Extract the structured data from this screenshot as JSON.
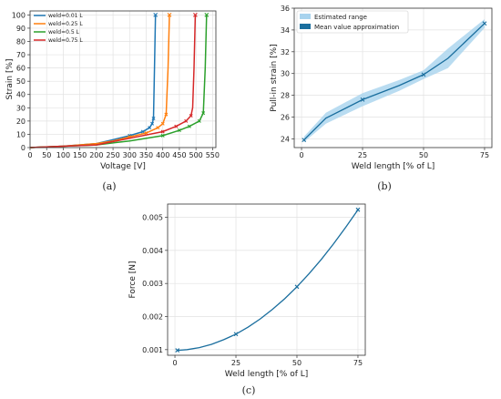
{
  "panels": {
    "a": "(a)",
    "b": "(b)",
    "c": "(c)"
  },
  "colors": {
    "weld_0_01": "#1f77b4",
    "weld_0_25": "#ff7f0e",
    "weld_0_5": "#2ca02c",
    "weld_0_75": "#d62728",
    "teal": "#1a6e9e",
    "band": "#a8d3ee"
  },
  "chart_data": [
    {
      "id": "a",
      "type": "line",
      "title": "",
      "xlabel": "Voltage [V]",
      "ylabel": "Strain [%]",
      "xlim": [
        0,
        560
      ],
      "ylim": [
        0,
        103
      ],
      "xticks": [
        0,
        50,
        100,
        150,
        200,
        250,
        300,
        350,
        400,
        450,
        500,
        550
      ],
      "yticks": [
        0,
        10,
        20,
        30,
        40,
        50,
        60,
        70,
        80,
        90,
        100
      ],
      "grid": true,
      "legend": "top-left",
      "series": [
        {
          "name": "weld=0.01 L",
          "color": "#1f77b4",
          "x": [
            0,
            100,
            200,
            250,
            300,
            340,
            360,
            368,
            372,
            375,
            378
          ],
          "y": [
            0,
            1,
            3,
            6,
            9,
            12,
            15,
            18,
            22,
            60,
            100
          ]
        },
        {
          "name": "weld=0.25 L",
          "color": "#ff7f0e",
          "x": [
            0,
            100,
            200,
            250,
            300,
            350,
            385,
            400,
            410,
            416,
            420
          ],
          "y": [
            0,
            1,
            3,
            5,
            8,
            11,
            15,
            18,
            25,
            60,
            100
          ]
        },
        {
          "name": "weld=0.5 L",
          "color": "#2ca02c",
          "x": [
            0,
            100,
            200,
            300,
            400,
            450,
            480,
            510,
            522,
            528,
            532
          ],
          "y": [
            0,
            1,
            2,
            5,
            9,
            13,
            16,
            20,
            26,
            60,
            100
          ]
        },
        {
          "name": "weld=0.75 L",
          "color": "#d62728",
          "x": [
            0,
            100,
            200,
            300,
            400,
            440,
            470,
            485,
            490,
            494,
            498
          ],
          "y": [
            0,
            1,
            2,
            7,
            12,
            16,
            20,
            24,
            30,
            60,
            100
          ]
        }
      ]
    },
    {
      "id": "b",
      "type": "line",
      "title": "",
      "xlabel": "Weld length [% of L]",
      "ylabel": "Pull-in strain [%]",
      "xlim": [
        -3,
        78
      ],
      "ylim": [
        23.2,
        36
      ],
      "xticks": [
        0,
        25,
        50,
        75
      ],
      "yticks": [
        24,
        26,
        28,
        30,
        32,
        34,
        36
      ],
      "grid": true,
      "legend": "top-left",
      "legend_entries": [
        "Estimated range",
        "Mean value approximation"
      ],
      "points": {
        "x": [
          1,
          25,
          50,
          75
        ],
        "y": [
          23.9,
          27.6,
          29.9,
          34.6
        ]
      },
      "mean_curve": {
        "x": [
          1,
          10,
          25,
          40,
          50,
          60,
          75
        ],
        "y": [
          23.9,
          25.9,
          27.6,
          28.9,
          29.9,
          31.4,
          34.6
        ]
      },
      "band_upper": [
        24.2,
        26.4,
        28.2,
        29.4,
        30.3,
        32.3,
        35.0
      ],
      "band_lower": [
        23.7,
        25.4,
        27.0,
        28.4,
        29.5,
        30.5,
        34.2
      ]
    },
    {
      "id": "c",
      "type": "line",
      "title": "",
      "xlabel": "Weld length [% of L]",
      "ylabel": "Force [N]",
      "xlim": [
        -3,
        78
      ],
      "ylim": [
        0.00083,
        0.0054
      ],
      "xticks": [
        0,
        25,
        50,
        75
      ],
      "yticks": [
        0.001,
        0.002,
        0.003,
        0.004,
        0.005
      ],
      "ytick_labels": [
        "0.001",
        "0.002",
        "0.003",
        "0.004",
        "0.005"
      ],
      "grid": true,
      "points": {
        "x": [
          1,
          25,
          50,
          75
        ],
        "y": [
          0.00098,
          0.00147,
          0.0029,
          0.00523
        ]
      },
      "curve": {
        "x": [
          1,
          5,
          10,
          15,
          20,
          25,
          30,
          35,
          40,
          45,
          50,
          55,
          60,
          65,
          70,
          75
        ],
        "y": [
          0.00098,
          0.001,
          0.00106,
          0.00116,
          0.0013,
          0.00147,
          0.00168,
          0.00193,
          0.00222,
          0.00254,
          0.0029,
          0.0033,
          0.00373,
          0.0042,
          0.0047,
          0.00523
        ]
      }
    }
  ]
}
